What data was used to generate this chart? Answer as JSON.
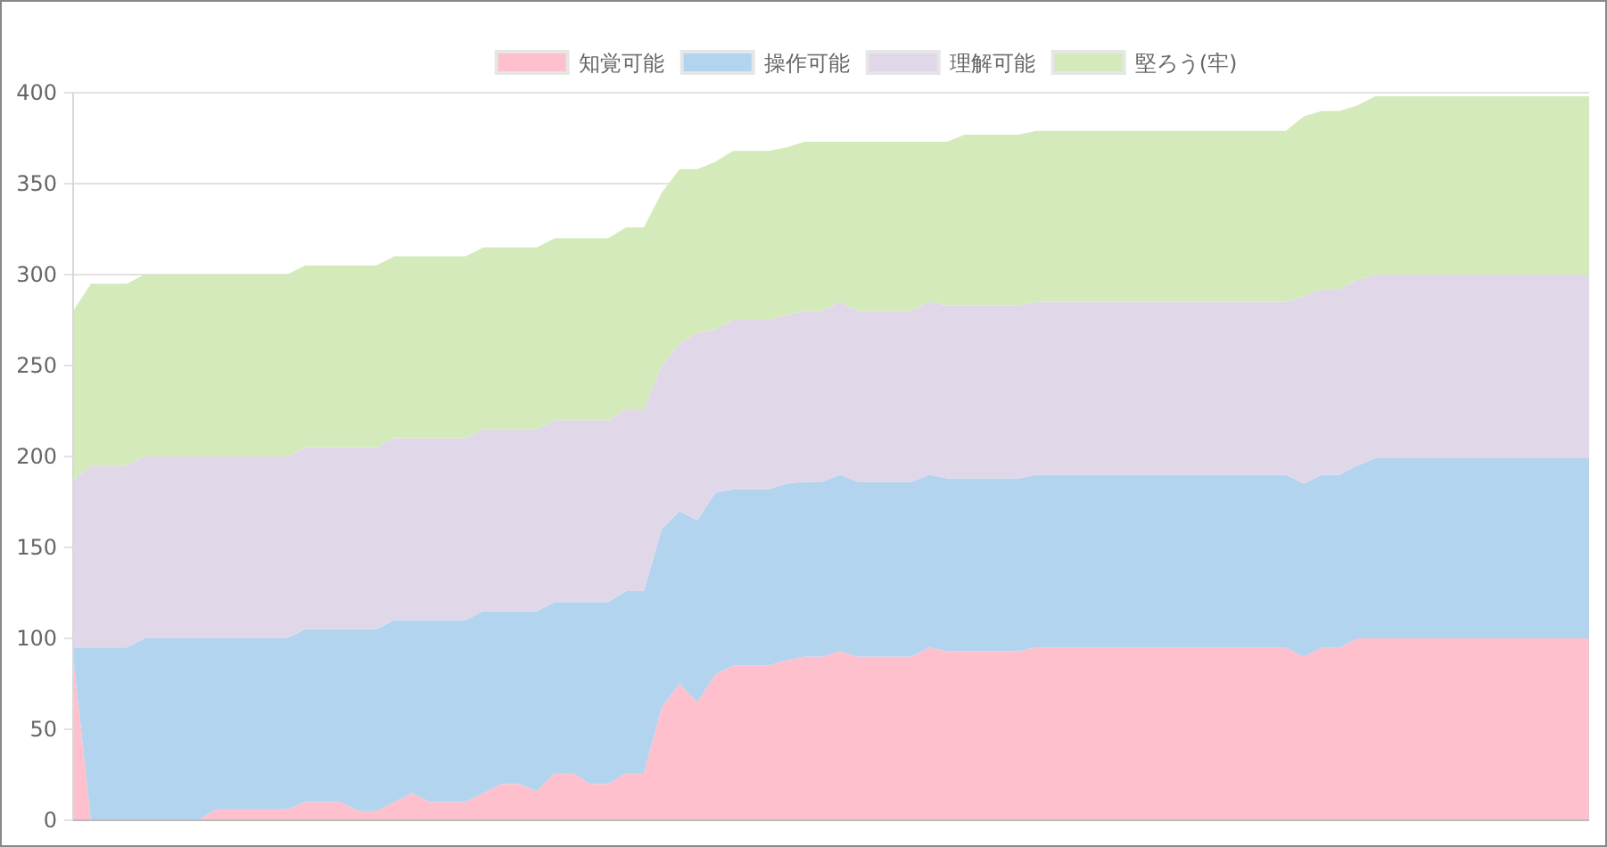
{
  "chart_data": {
    "type": "area",
    "stacked": true,
    "legend": "top",
    "grid": "y",
    "ylim": [
      0,
      400
    ],
    "yticks": [
      0,
      50,
      100,
      150,
      200,
      250,
      300,
      350,
      400
    ],
    "categories": [
      null,
      null,
      null,
      null,
      null,
      null,
      null,
      null,
      null,
      null,
      null,
      null,
      null,
      null,
      null,
      null,
      null,
      null,
      null,
      null,
      null,
      null,
      null,
      null,
      null,
      null,
      null,
      null,
      null,
      null,
      null,
      null,
      null,
      null,
      null,
      null,
      null,
      null,
      null,
      null,
      null,
      null,
      null,
      null,
      null,
      null,
      null,
      null,
      null,
      null,
      null,
      null,
      null,
      null,
      null,
      null,
      null,
      null,
      null,
      null,
      null,
      null,
      null,
      null,
      null,
      null,
      null,
      null,
      null,
      null,
      null,
      null,
      null,
      null,
      null,
      null,
      null,
      null,
      null,
      null,
      null,
      null,
      null,
      null,
      null,
      null
    ],
    "series": [
      {
        "name": "知覚可能",
        "color": "#fec0cc",
        "values": [
          90,
          0,
          0,
          0,
          0,
          0,
          0,
          0,
          6,
          6,
          6,
          6,
          6,
          10,
          10,
          10,
          5,
          5,
          10,
          15,
          10,
          10,
          10,
          15,
          20,
          20,
          16,
          26,
          26,
          20,
          20,
          26,
          26,
          62,
          75,
          65,
          80,
          85,
          85,
          85,
          88,
          90,
          90,
          93,
          90,
          90,
          90,
          90,
          95,
          93,
          93,
          93,
          93,
          93,
          95,
          95,
          95,
          95,
          95,
          95,
          95,
          95,
          95,
          95,
          95,
          95,
          95,
          95,
          95,
          90,
          95,
          95,
          100,
          100,
          100,
          100,
          100,
          100,
          100,
          100,
          100,
          100,
          100,
          100,
          100,
          100
        ]
      },
      {
        "name": "操作可能",
        "color": "#b3d4ee",
        "values": [
          5,
          95,
          95,
          95,
          100,
          100,
          100,
          100,
          94,
          94,
          94,
          94,
          94,
          95,
          95,
          95,
          100,
          100,
          100,
          95,
          100,
          100,
          100,
          100,
          95,
          95,
          99,
          94,
          94,
          100,
          100,
          100,
          100,
          98,
          95,
          100,
          100,
          97,
          97,
          97,
          97,
          96,
          96,
          97,
          96,
          96,
          96,
          96,
          95,
          95,
          95,
          95,
          95,
          95,
          95,
          95,
          95,
          95,
          95,
          95,
          95,
          95,
          95,
          95,
          95,
          95,
          95,
          95,
          95,
          95,
          95,
          95,
          95,
          99,
          99,
          99,
          99,
          99,
          99,
          99,
          99,
          99,
          99,
          99,
          99,
          99
        ]
      },
      {
        "name": "理解可能",
        "color": "#e0d8e8",
        "values": [
          92,
          100,
          100,
          100,
          100,
          100,
          100,
          100,
          100,
          100,
          100,
          100,
          100,
          100,
          100,
          100,
          100,
          100,
          100,
          100,
          100,
          100,
          100,
          100,
          100,
          100,
          100,
          100,
          100,
          100,
          100,
          100,
          100,
          90,
          92,
          103,
          90,
          93,
          93,
          93,
          93,
          94,
          94,
          95,
          94,
          94,
          94,
          94,
          95,
          95,
          95,
          95,
          95,
          95,
          95,
          95,
          95,
          95,
          95,
          95,
          95,
          95,
          95,
          95,
          95,
          95,
          95,
          95,
          95,
          103,
          102,
          102,
          102,
          101,
          101,
          101,
          101,
          101,
          101,
          101,
          101,
          101,
          101,
          101,
          101,
          101
        ]
      },
      {
        "name": "堅ろう(牢)",
        "color": "#d4eabb",
        "values": [
          93,
          100,
          100,
          100,
          100,
          100,
          100,
          100,
          100,
          100,
          100,
          100,
          100,
          100,
          100,
          100,
          100,
          100,
          100,
          100,
          100,
          100,
          100,
          100,
          100,
          100,
          100,
          100,
          100,
          100,
          100,
          100,
          100,
          95,
          96,
          90,
          92,
          93,
          93,
          93,
          92,
          93,
          93,
          88,
          93,
          93,
          93,
          93,
          88,
          90,
          94,
          94,
          94,
          94,
          94,
          94,
          94,
          94,
          94,
          94,
          94,
          94,
          94,
          94,
          94,
          94,
          94,
          94,
          94,
          99,
          98,
          98,
          96,
          98,
          98,
          98,
          98,
          98,
          98,
          98,
          98,
          98,
          98,
          98,
          98,
          98
        ]
      }
    ]
  }
}
